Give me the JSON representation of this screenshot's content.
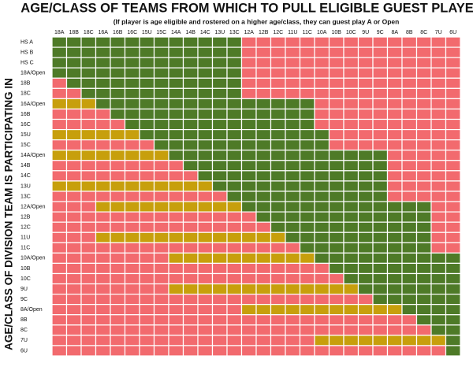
{
  "header": {
    "title": "AGE/CLASS OF TEAMS FROM WHICH TO PULL ELIGIBLE GUEST PLAYERS",
    "subtitle": "(If player is age eligible and rostered on a higher age/class, they can guest play A or Open",
    "row_axis_title": "AGE/CLASS OF DIVISION TEAM IS PARTICIPATING IN"
  },
  "grid": {
    "colors": {
      "G": "#4e7a27",
      "R": "#f26a6e",
      "Y": "#c79f0c"
    },
    "columns": [
      "18A",
      "18B",
      "18C",
      "16A",
      "16B",
      "16C",
      "15U",
      "15C",
      "14A",
      "14B",
      "14C",
      "13U",
      "13C",
      "12A",
      "12B",
      "12C",
      "11U",
      "11C",
      "10A",
      "10B",
      "10C",
      "9U",
      "9C",
      "8A",
      "8B",
      "8C",
      "7U",
      "6U"
    ],
    "rows": [
      {
        "label": "HS A",
        "cells": "GGGGGGGGGGGGGRRRRRRRRRRRRRRR"
      },
      {
        "label": "HS B",
        "cells": "GGGGGGGGGGGGGRRRRRRRRRRRRRRR"
      },
      {
        "label": "HS C",
        "cells": "GGGGGGGGGGGGGRRRRRRRRRRRRRRR"
      },
      {
        "label": "18A/Open",
        "cells": "GGGGGGGGGGGGGRRRRRRRRRRRRRRR"
      },
      {
        "label": "18B",
        "cells": "RGGGGGGGGGGGGRRRRRRRRRRRRRRR"
      },
      {
        "label": "18C",
        "cells": "RRGGGGGGGGGGGRRRRRRRRRRRRRRR"
      },
      {
        "label": "16A/Open",
        "cells": "YYYGGGGGGGGGGGGGGGRRRRRRRRRR"
      },
      {
        "label": "16B",
        "cells": "RRRRGGGGGGGGGGGGGGRRRRRRRRRR"
      },
      {
        "label": "16C",
        "cells": "RRRRRGGGGGGGGGGGGGRRRRRRRRRR"
      },
      {
        "label": "15U",
        "cells": "YYYYYYGGGGGGGGGGGGGRRRRRRRRR"
      },
      {
        "label": "15C",
        "cells": "RRRRRRRGGGGGGGGGGGGRRRRRRRRR"
      },
      {
        "label": "14A/Open",
        "cells": "YYYYYYYYGGGGGGGGGGGGGGGRRRRR"
      },
      {
        "label": "14B",
        "cells": "RRRRRRRRRGGGGGGGGGGGGGGRRRRR"
      },
      {
        "label": "14C",
        "cells": "RRRRRRRRRRGGGGGGGGGGGGGRRRRR"
      },
      {
        "label": "13U",
        "cells": "YYYYYYYYYYYGGGGGGGGGGGGRRRRR"
      },
      {
        "label": "13C",
        "cells": "RRRRRRRRRRRRGGGGGGGGGGGRRRRR"
      },
      {
        "label": "12A/Open",
        "cells": "RRRYYYYYYYYYYGGGGGGGGGGGGGRR"
      },
      {
        "label": "12B",
        "cells": "RRRRRRRRRRRRRRGGGGGGGGGGGGRR"
      },
      {
        "label": "12C",
        "cells": "RRRRRRRRRRRRRRRGGGGGGGGGGGRR"
      },
      {
        "label": "11U",
        "cells": "RRRYYYYYYYYYYYYYGGGGGGGGGGRR"
      },
      {
        "label": "11C",
        "cells": "RRRRRRRRRRRRRRRRRGGGGGGGGGRR"
      },
      {
        "label": "10A/Open",
        "cells": "RRRRRRRRYYYYYYYYYYGGGGGGGGGG"
      },
      {
        "label": "10B",
        "cells": "RRRRRRRRRRRRRRRRRRRGGGGGGGGG"
      },
      {
        "label": "10C",
        "cells": "RRRRRRRRRRRRRRRRRRRRGGGGGGGG"
      },
      {
        "label": "9U",
        "cells": "RRRRRRRRYYYYYYYYYYYYYGGGGGGG"
      },
      {
        "label": "9C",
        "cells": "RRRRRRRRRRRRRRRRRRRRRRGGGGGG"
      },
      {
        "label": "8A/Open",
        "cells": "RRRRRRRRRRRRRYYYYYYYYYYYGGGG"
      },
      {
        "label": "8B",
        "cells": "RRRRRRRRRRRRRRRRRRRRRRRRRGGG"
      },
      {
        "label": "8C",
        "cells": "RRRRRRRRRRRRRRRRRRRRRRRRRRGG"
      },
      {
        "label": "7U",
        "cells": "RRRRRRRRRRRRRRRRRRYYYYYYYYYG"
      },
      {
        "label": "6U",
        "cells": "RRRRRRRRRRRRRRRRRRRRRRRRRRRG"
      }
    ]
  }
}
